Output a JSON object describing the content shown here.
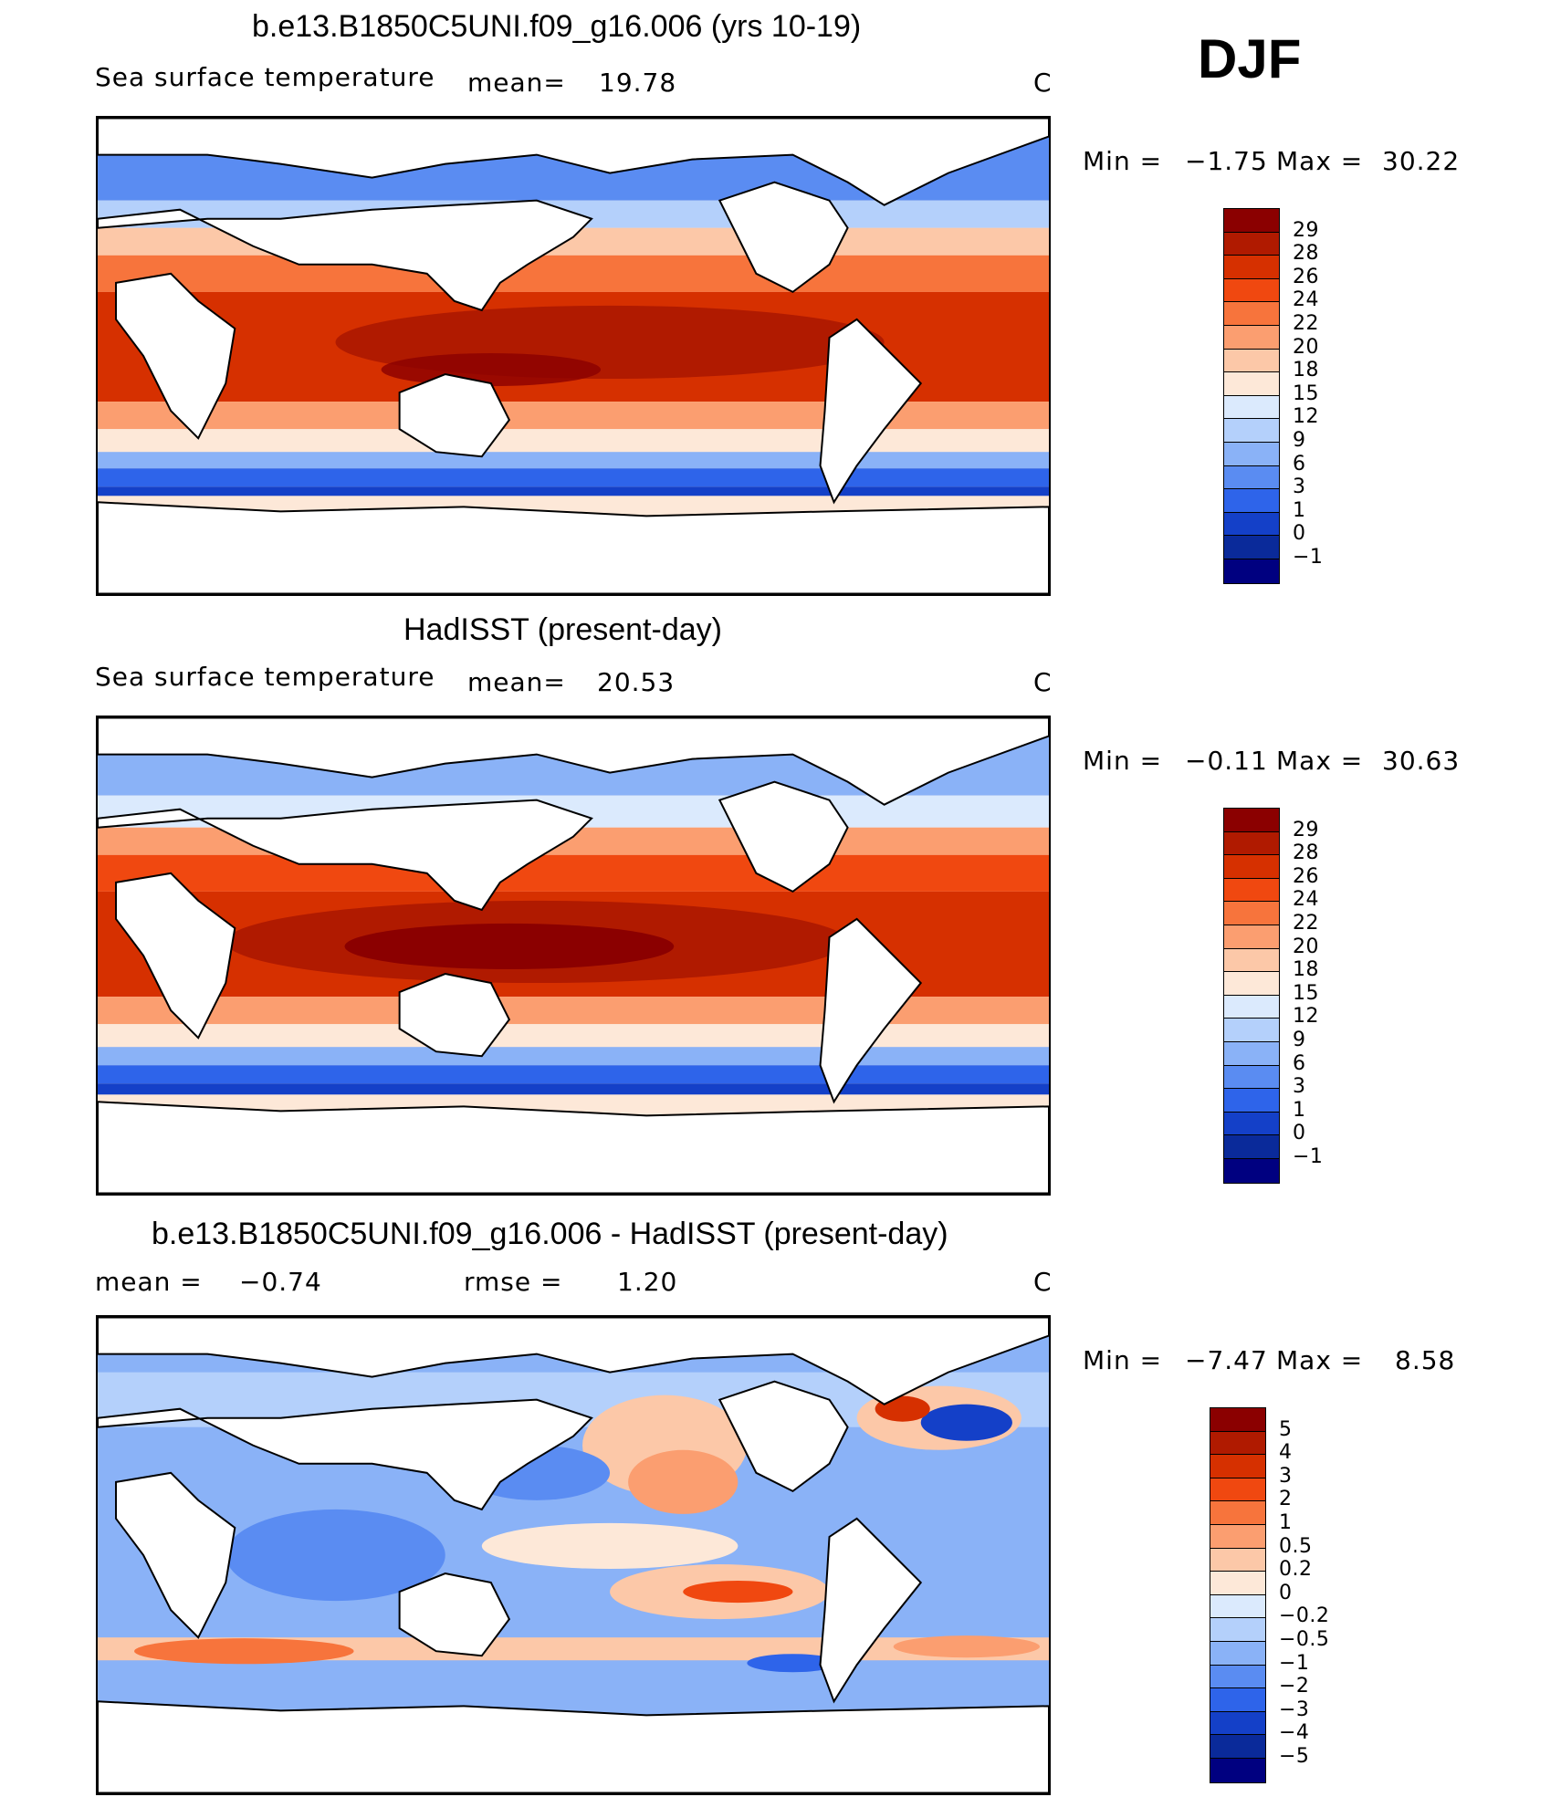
{
  "season": "DJF",
  "panels": [
    {
      "title": "b.e13.B1850C5UNI.f09_g16.006 (yrs 10-19)",
      "left_label": "Sea surface temperature",
      "mean_label": "mean=",
      "mean_value": "19.78",
      "units": "C",
      "min_label": "Min =",
      "min_value": "−1.75",
      "max_label": "Max =",
      "max_value": "30.22",
      "colorbar": {
        "labels": [
          "29",
          "28",
          "26",
          "24",
          "22",
          "20",
          "18",
          "15",
          "12",
          "9",
          "6",
          "3",
          "1",
          "0",
          "−1"
        ],
        "colors": [
          "#8b0000",
          "#b01a00",
          "#d63000",
          "#f04810",
          "#f7743c",
          "#fb9e70",
          "#fcc8a8",
          "#fde8d8",
          "#dbeafd",
          "#b4d0fb",
          "#8ab2f7",
          "#5a8cf2",
          "#2e64ea",
          "#1440c8",
          "#0a2a9a",
          "#000080"
        ]
      }
    },
    {
      "title": "HadISST (present-day)",
      "left_label": "Sea surface temperature",
      "mean_label": "mean=",
      "mean_value": "20.53",
      "units": "C",
      "min_label": "Min =",
      "min_value": "−0.11",
      "max_label": "Max =",
      "max_value": "30.63",
      "colorbar": {
        "labels": [
          "29",
          "28",
          "26",
          "24",
          "22",
          "20",
          "18",
          "15",
          "12",
          "9",
          "6",
          "3",
          "1",
          "0",
          "−1"
        ],
        "colors": [
          "#8b0000",
          "#b01a00",
          "#d63000",
          "#f04810",
          "#f7743c",
          "#fb9e70",
          "#fcc8a8",
          "#fde8d8",
          "#dbeafd",
          "#b4d0fb",
          "#8ab2f7",
          "#5a8cf2",
          "#2e64ea",
          "#1440c8",
          "#0a2a9a",
          "#000080"
        ]
      }
    },
    {
      "title": "b.e13.B1850C5UNI.f09_g16.006 - HadISST (present-day)",
      "left_label": "mean =",
      "left_value": "−0.74",
      "rmse_label": "rmse =",
      "rmse_value": "1.20",
      "units": "C",
      "min_label": "Min =",
      "min_value": "−7.47",
      "max_label": "Max =",
      "max_value": "8.58",
      "colorbar": {
        "labels": [
          "5",
          "4",
          "3",
          "2",
          "1",
          "0.5",
          "0.2",
          "0",
          "−0.2",
          "−0.5",
          "−1",
          "−2",
          "−3",
          "−4",
          "−5"
        ],
        "colors": [
          "#8b0000",
          "#b01a00",
          "#d63000",
          "#f04810",
          "#f7743c",
          "#fb9e70",
          "#fcc8a8",
          "#fde8d8",
          "#dbeafd",
          "#b4d0fb",
          "#8ab2f7",
          "#5a8cf2",
          "#2e64ea",
          "#1440c8",
          "#0a2a9a",
          "#000080"
        ]
      }
    }
  ]
}
